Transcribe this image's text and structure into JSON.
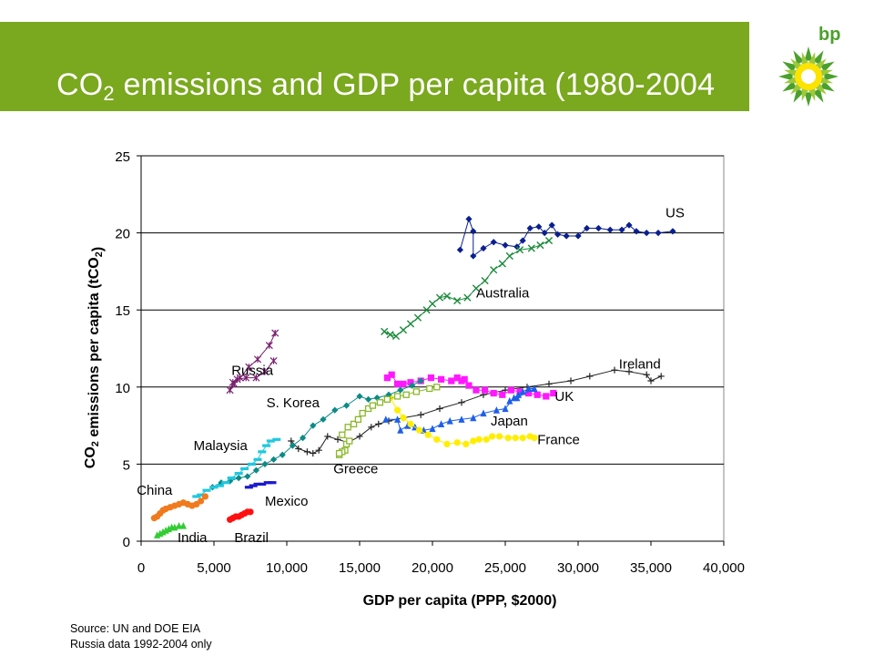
{
  "header": {
    "title_main": "CO",
    "title_sub": "2",
    "title_rest": " emissions and GDP per capita (1980-2004",
    "logo_text": "bp",
    "banner_color": "#7aa81e",
    "logo_colors": [
      "#4aa02c",
      "#9ec93b",
      "#fde300",
      "#ffffff"
    ]
  },
  "source": {
    "line1": "Source: UN and DOE EIA",
    "line2": "Russia data 1992-2004 only"
  },
  "chart_data": {
    "type": "scatter",
    "xlabel": "GDP per capita (PPP, $2000)",
    "ylabel": "CO2 emissions per capita (tCO2)",
    "ylabel_parts": {
      "a": "CO",
      "b": "2",
      "c": " emissions per capita (tCO",
      "d": "2",
      "e": ")"
    },
    "xlim": [
      0,
      40000
    ],
    "ylim": [
      0,
      25
    ],
    "xticks": [
      0,
      5000,
      10000,
      15000,
      20000,
      25000,
      30000,
      35000,
      40000
    ],
    "xtick_labels": [
      "0",
      "5,000",
      "10,000",
      "15,000",
      "20,000",
      "25,000",
      "30,000",
      "35,000",
      "40,000"
    ],
    "yticks": [
      0,
      5,
      10,
      15,
      20,
      25
    ],
    "ytick_labels": [
      "0",
      "5",
      "10",
      "15",
      "20",
      "25"
    ],
    "grid": "horizontal",
    "series": [
      {
        "name": "US",
        "color": "#0a1f8f",
        "marker": "diamond",
        "label_pos": [
          36000,
          21.0
        ],
        "points": [
          [
            21900,
            18.9
          ],
          [
            22500,
            20.9
          ],
          [
            22800,
            20.1
          ],
          [
            22800,
            18.5
          ],
          [
            23500,
            19.0
          ],
          [
            24200,
            19.4
          ],
          [
            25000,
            19.2
          ],
          [
            25800,
            19.1
          ],
          [
            26200,
            19.5
          ],
          [
            26700,
            20.3
          ],
          [
            27300,
            20.4
          ],
          [
            27700,
            20.0
          ],
          [
            28200,
            20.5
          ],
          [
            28600,
            19.9
          ],
          [
            29200,
            19.8
          ],
          [
            30000,
            19.8
          ],
          [
            30600,
            20.3
          ],
          [
            31400,
            20.3
          ],
          [
            32200,
            20.2
          ],
          [
            33000,
            20.2
          ],
          [
            33500,
            20.5
          ],
          [
            34000,
            20.1
          ],
          [
            34700,
            20.0
          ],
          [
            35500,
            20.0
          ],
          [
            36500,
            20.1
          ]
        ]
      },
      {
        "name": "Australia",
        "color": "#1a8a3a",
        "marker": "x",
        "label_pos": [
          23000,
          15.8
        ],
        "points": [
          [
            16700,
            13.6
          ],
          [
            17100,
            13.4
          ],
          [
            17500,
            13.3
          ],
          [
            18000,
            13.7
          ],
          [
            18500,
            14.1
          ],
          [
            19000,
            14.5
          ],
          [
            19600,
            15.0
          ],
          [
            20000,
            15.4
          ],
          [
            20500,
            15.8
          ],
          [
            21000,
            15.9
          ],
          [
            21700,
            15.6
          ],
          [
            22400,
            15.8
          ],
          [
            23000,
            16.4
          ],
          [
            23600,
            16.9
          ],
          [
            24200,
            17.6
          ],
          [
            24800,
            18.0
          ],
          [
            25300,
            18.5
          ],
          [
            26000,
            18.9
          ],
          [
            26800,
            19.0
          ],
          [
            27400,
            19.2
          ],
          [
            28000,
            19.5
          ]
        ]
      },
      {
        "name": "Russia",
        "color": "#7a1f6e",
        "marker": "star",
        "label_pos": [
          6200,
          10.8
        ],
        "points": [
          [
            9200,
            13.5
          ],
          [
            8800,
            12.7
          ],
          [
            8000,
            11.8
          ],
          [
            7400,
            11.3
          ],
          [
            6800,
            10.6
          ],
          [
            6400,
            10.2
          ],
          [
            6100,
            9.8
          ],
          [
            6300,
            10.3
          ],
          [
            6600,
            10.5
          ],
          [
            7200,
            10.6
          ],
          [
            7900,
            10.6
          ],
          [
            8500,
            11.0
          ],
          [
            9100,
            11.7
          ]
        ]
      },
      {
        "name": "Ireland",
        "color": "#222222",
        "marker": "plus",
        "label_pos": [
          32800,
          11.2
        ],
        "points": [
          [
            10300,
            6.5
          ],
          [
            10800,
            6.0
          ],
          [
            11400,
            5.8
          ],
          [
            11800,
            5.7
          ],
          [
            12200,
            5.9
          ],
          [
            12800,
            6.8
          ],
          [
            13500,
            6.6
          ],
          [
            14200,
            6.4
          ],
          [
            15000,
            6.8
          ],
          [
            15800,
            7.4
          ],
          [
            16300,
            7.6
          ],
          [
            17000,
            7.8
          ],
          [
            18000,
            8.0
          ],
          [
            19200,
            8.2
          ],
          [
            20500,
            8.6
          ],
          [
            22000,
            9.0
          ],
          [
            23500,
            9.5
          ],
          [
            25000,
            9.8
          ],
          [
            26500,
            10.0
          ],
          [
            28000,
            10.2
          ],
          [
            29500,
            10.4
          ],
          [
            30800,
            10.7
          ],
          [
            32500,
            11.1
          ],
          [
            33500,
            11.0
          ],
          [
            34700,
            10.8
          ],
          [
            35000,
            10.4
          ],
          [
            35700,
            10.7
          ]
        ]
      },
      {
        "name": "UK",
        "color": "#ff18ff",
        "marker": "square",
        "label_pos": [
          28400,
          9.1
        ],
        "points": [
          [
            16900,
            10.6
          ],
          [
            17200,
            10.8
          ],
          [
            17600,
            10.2
          ],
          [
            18000,
            10.2
          ],
          [
            18500,
            10.3
          ],
          [
            19200,
            10.4
          ],
          [
            19900,
            10.6
          ],
          [
            20600,
            10.5
          ],
          [
            21300,
            10.4
          ],
          [
            21700,
            10.6
          ],
          [
            22000,
            10.4
          ],
          [
            22200,
            10.5
          ],
          [
            22500,
            10.1
          ],
          [
            23000,
            9.8
          ],
          [
            23600,
            9.8
          ],
          [
            24200,
            9.6
          ],
          [
            24800,
            9.5
          ],
          [
            25400,
            9.8
          ],
          [
            26000,
            9.7
          ],
          [
            26600,
            9.6
          ],
          [
            27200,
            9.5
          ],
          [
            27800,
            9.4
          ],
          [
            28300,
            9.6
          ]
        ]
      },
      {
        "name": "Japan",
        "color": "#1e5fe8",
        "marker": "triangle",
        "label_pos": [
          24000,
          7.5
        ],
        "points": [
          [
            16800,
            7.9
          ],
          [
            17600,
            7.9
          ],
          [
            17800,
            7.2
          ],
          [
            18300,
            7.5
          ],
          [
            18800,
            7.4
          ],
          [
            19400,
            7.2
          ],
          [
            20000,
            7.3
          ],
          [
            20600,
            7.6
          ],
          [
            21200,
            7.8
          ],
          [
            22000,
            7.9
          ],
          [
            22800,
            8.0
          ],
          [
            23500,
            8.3
          ],
          [
            24400,
            8.5
          ],
          [
            25000,
            8.6
          ],
          [
            25600,
            9.3
          ],
          [
            25900,
            9.5
          ],
          [
            26200,
            9.7
          ],
          [
            26600,
            9.9
          ],
          [
            27000,
            9.9
          ],
          [
            25800,
            9.3
          ],
          [
            25300,
            9.1
          ]
        ]
      },
      {
        "name": "France",
        "color": "#ffee00",
        "marker": "circle",
        "label_pos": [
          27200,
          6.3
        ],
        "points": [
          [
            17100,
            9.3
          ],
          [
            17600,
            8.5
          ],
          [
            18000,
            8.0
          ],
          [
            18500,
            7.6
          ],
          [
            19100,
            7.2
          ],
          [
            19700,
            6.9
          ],
          [
            20300,
            6.6
          ],
          [
            21000,
            6.3
          ],
          [
            21700,
            6.4
          ],
          [
            22300,
            6.3
          ],
          [
            22800,
            6.5
          ],
          [
            23200,
            6.6
          ],
          [
            23700,
            6.6
          ],
          [
            24100,
            6.8
          ],
          [
            24600,
            6.8
          ],
          [
            25200,
            6.7
          ],
          [
            25700,
            6.7
          ],
          [
            26200,
            6.7
          ],
          [
            26700,
            6.8
          ],
          [
            27000,
            6.7
          ]
        ]
      },
      {
        "name": "S. Korea",
        "color": "#0c8a86",
        "marker": "diamond",
        "label_pos": [
          8600,
          8.7
        ],
        "points": [
          [
            4900,
            3.5
          ],
          [
            5500,
            3.8
          ],
          [
            6100,
            3.9
          ],
          [
            6700,
            4.1
          ],
          [
            7300,
            4.2
          ],
          [
            7900,
            4.6
          ],
          [
            8500,
            5.0
          ],
          [
            9100,
            5.3
          ],
          [
            9700,
            5.6
          ],
          [
            10400,
            6.2
          ],
          [
            11100,
            6.7
          ],
          [
            11800,
            7.5
          ],
          [
            12500,
            7.9
          ],
          [
            13300,
            8.5
          ],
          [
            14100,
            8.8
          ],
          [
            15000,
            9.4
          ],
          [
            15600,
            9.2
          ],
          [
            16200,
            9.3
          ],
          [
            17000,
            9.5
          ],
          [
            17800,
            9.8
          ],
          [
            18600,
            10.1
          ],
          [
            19200,
            10.4
          ]
        ]
      },
      {
        "name": "Greece",
        "color": "#8ab82a",
        "marker": "square-open",
        "label_pos": [
          13200,
          4.4
        ],
        "points": [
          [
            13600,
            5.6
          ],
          [
            14000,
            5.9
          ],
          [
            13800,
            5.8
          ],
          [
            13600,
            5.7
          ],
          [
            14100,
            6.3
          ],
          [
            14300,
            6.5
          ],
          [
            13800,
            6.9
          ],
          [
            14200,
            7.4
          ],
          [
            14600,
            7.6
          ],
          [
            14900,
            7.9
          ],
          [
            15200,
            8.3
          ],
          [
            15600,
            8.6
          ],
          [
            15900,
            8.8
          ],
          [
            16400,
            9.0
          ],
          [
            16900,
            9.2
          ],
          [
            17600,
            9.4
          ],
          [
            18200,
            9.5
          ],
          [
            18900,
            9.7
          ],
          [
            19800,
            9.9
          ],
          [
            20300,
            10.0
          ]
        ]
      },
      {
        "name": "Malaysia",
        "color": "#1fc8e0",
        "marker": "dash",
        "label_pos": [
          3600,
          5.9
        ],
        "points": [
          [
            3800,
            2.9
          ],
          [
            4100,
            3.0
          ],
          [
            4500,
            3.3
          ],
          [
            5000,
            3.5
          ],
          [
            5400,
            3.6
          ],
          [
            5800,
            3.8
          ],
          [
            6200,
            4.1
          ],
          [
            6700,
            4.4
          ],
          [
            7100,
            4.7
          ],
          [
            7600,
            5.0
          ],
          [
            8000,
            5.3
          ],
          [
            8300,
            5.8
          ],
          [
            8600,
            6.2
          ],
          [
            8900,
            6.5
          ],
          [
            9300,
            6.6
          ]
        ]
      },
      {
        "name": "China",
        "color": "#f07a1e",
        "marker": "circle",
        "label_pos": [
          -300,
          3.0
        ],
        "points": [
          [
            900,
            1.5
          ],
          [
            1100,
            1.6
          ],
          [
            1300,
            1.8
          ],
          [
            1500,
            2.0
          ],
          [
            1700,
            2.1
          ],
          [
            2000,
            2.2
          ],
          [
            2300,
            2.3
          ],
          [
            2600,
            2.4
          ],
          [
            2900,
            2.5
          ],
          [
            3200,
            2.4
          ],
          [
            3500,
            2.3
          ],
          [
            3800,
            2.4
          ],
          [
            4100,
            2.6
          ],
          [
            4400,
            2.9
          ]
        ]
      },
      {
        "name": "Mexico",
        "color": "#1a1acc",
        "marker": "dash",
        "label_pos": [
          8500,
          2.3
        ],
        "points": [
          [
            7400,
            3.5
          ],
          [
            7700,
            3.6
          ],
          [
            8000,
            3.7
          ],
          [
            8300,
            3.7
          ],
          [
            8700,
            3.8
          ],
          [
            9000,
            3.8
          ]
        ]
      },
      {
        "name": "India",
        "color": "#33cc33",
        "marker": "triangle",
        "label_pos": [
          2500,
          -0.05
        ],
        "points": [
          [
            1100,
            0.4
          ],
          [
            1300,
            0.5
          ],
          [
            1500,
            0.6
          ],
          [
            1700,
            0.7
          ],
          [
            1900,
            0.8
          ],
          [
            2100,
            0.9
          ],
          [
            2300,
            0.9
          ],
          [
            2600,
            1.0
          ],
          [
            2900,
            1.0
          ]
        ]
      },
      {
        "name": "Brazil",
        "color": "#ff1010",
        "marker": "circle",
        "label_pos": [
          6400,
          -0.05
        ],
        "points": [
          [
            6100,
            1.4
          ],
          [
            6300,
            1.5
          ],
          [
            6500,
            1.6
          ],
          [
            6700,
            1.6
          ],
          [
            6900,
            1.7
          ],
          [
            7100,
            1.8
          ],
          [
            7300,
            1.9
          ],
          [
            7500,
            1.9
          ]
        ]
      }
    ]
  }
}
